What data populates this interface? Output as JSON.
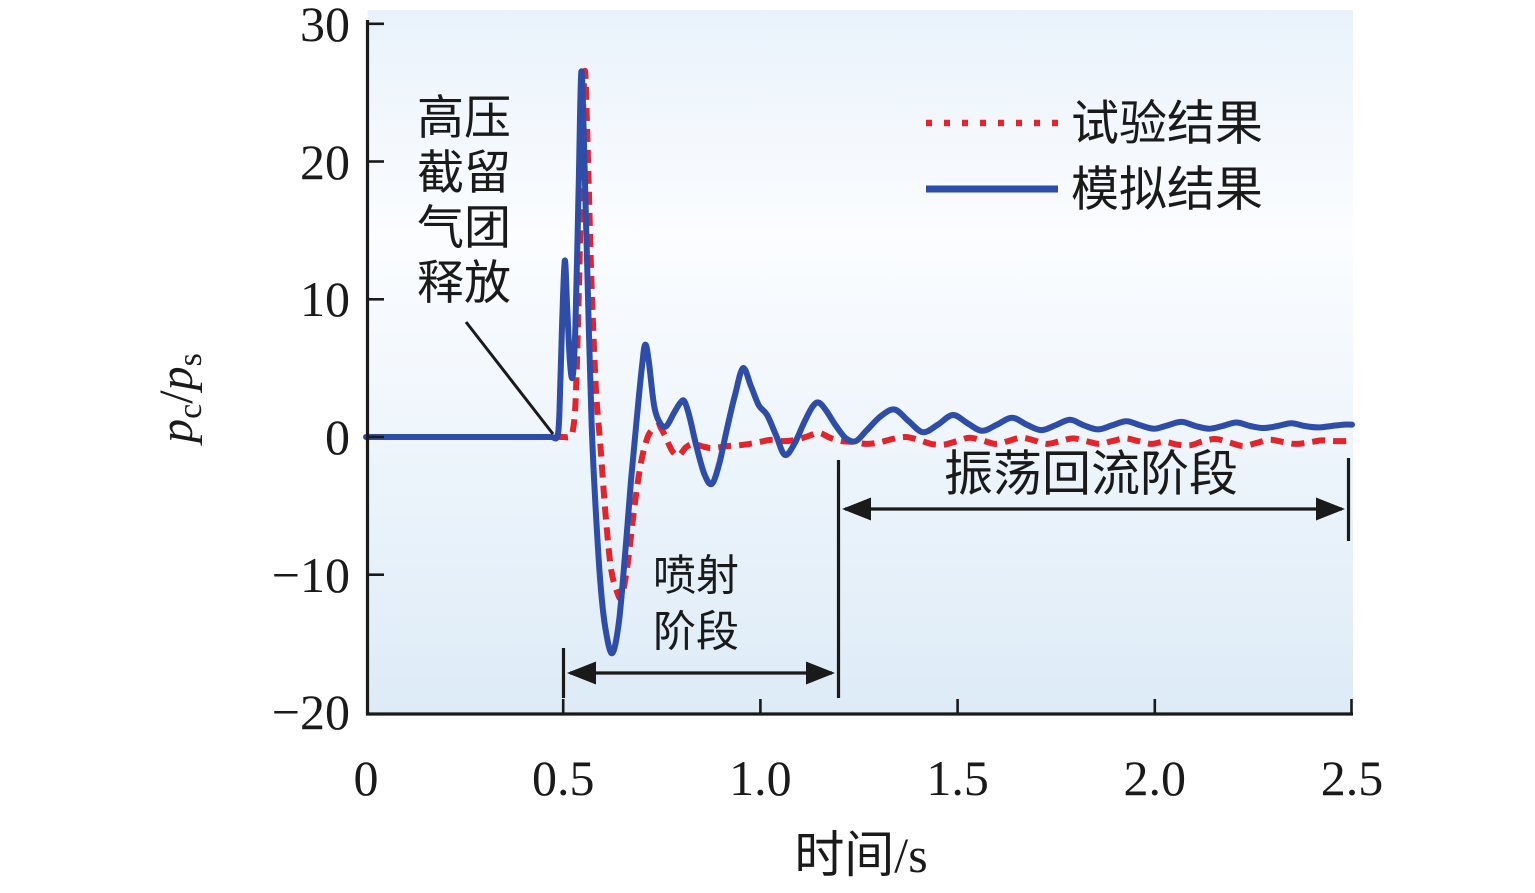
{
  "chart_data": {
    "type": "line",
    "title": "",
    "xlabel": "时间/s",
    "ylabel": "p_c/p_s",
    "xlim": [
      0,
      2.5
    ],
    "ylim": [
      -20,
      30
    ],
    "grid": false,
    "legend_position": "top-right-inside",
    "x_ticks": [
      "0",
      "0.5",
      "1.0",
      "1.5",
      "2.0",
      "2.5"
    ],
    "x_tick_values": [
      0,
      0.5,
      1.0,
      1.5,
      2.0,
      2.5
    ],
    "y_ticks": [
      "30",
      "20",
      "10",
      "0",
      "−10",
      "−20"
    ],
    "y_tick_values": [
      30,
      20,
      10,
      0,
      -10,
      -20
    ],
    "series": [
      {
        "name": "试验结果",
        "style": "dashed",
        "color": "#e4232b",
        "width": 6,
        "dash": "13 8",
        "points": [
          [
            0,
            0
          ],
          [
            0.2,
            0
          ],
          [
            0.35,
            0
          ],
          [
            0.46,
            0
          ],
          [
            0.5,
            0
          ],
          [
            0.515,
            0
          ],
          [
            0.524,
            0.4
          ],
          [
            0.532,
            3
          ],
          [
            0.54,
            11
          ],
          [
            0.548,
            21
          ],
          [
            0.555,
            26.6
          ],
          [
            0.562,
            21
          ],
          [
            0.572,
            11
          ],
          [
            0.583,
            3.5
          ],
          [
            0.594,
            -0.5
          ],
          [
            0.607,
            -5.5
          ],
          [
            0.621,
            -9.5
          ],
          [
            0.636,
            -11.2
          ],
          [
            0.648,
            -11.6
          ],
          [
            0.663,
            -9.3
          ],
          [
            0.68,
            -5.2
          ],
          [
            0.697,
            -1.9
          ],
          [
            0.713,
            -0.1
          ],
          [
            0.728,
            0.6
          ],
          [
            0.743,
            0.8
          ],
          [
            0.758,
            0.1
          ],
          [
            0.776,
            -1.0
          ],
          [
            0.793,
            -1.35
          ],
          [
            0.811,
            -0.75
          ],
          [
            0.83,
            -0.5
          ],
          [
            0.85,
            -0.65
          ],
          [
            0.872,
            -0.8
          ],
          [
            0.895,
            -0.75
          ],
          [
            0.92,
            -0.65
          ],
          [
            0.946,
            -0.6
          ],
          [
            0.972,
            -0.5
          ],
          [
            1.0,
            -0.35
          ],
          [
            1.03,
            -0.2
          ],
          [
            1.06,
            -0.3
          ],
          [
            1.09,
            -0.2
          ],
          [
            1.12,
            0.05
          ],
          [
            1.148,
            0.3
          ],
          [
            1.176,
            -0.05
          ],
          [
            1.206,
            -0.3
          ],
          [
            1.236,
            -0.35
          ],
          [
            1.268,
            -0.5
          ],
          [
            1.3,
            -0.4
          ],
          [
            1.334,
            -0.15
          ],
          [
            1.368,
            0.0
          ],
          [
            1.4,
            -0.2
          ],
          [
            1.433,
            -0.5
          ],
          [
            1.466,
            -0.55
          ],
          [
            1.498,
            -0.3
          ],
          [
            1.53,
            -0.05
          ],
          [
            1.563,
            -0.25
          ],
          [
            1.596,
            -0.5
          ],
          [
            1.628,
            -0.3
          ],
          [
            1.661,
            -0.05
          ],
          [
            1.694,
            -0.25
          ],
          [
            1.727,
            -0.5
          ],
          [
            1.76,
            -0.3
          ],
          [
            1.793,
            -0.1
          ],
          [
            1.826,
            -0.3
          ],
          [
            1.859,
            -0.5
          ],
          [
            1.892,
            -0.3
          ],
          [
            1.925,
            -0.1
          ],
          [
            1.958,
            -0.3
          ],
          [
            1.991,
            -0.5
          ],
          [
            2.024,
            -0.35
          ],
          [
            2.057,
            -0.55
          ],
          [
            2.09,
            -0.6
          ],
          [
            2.123,
            -0.3
          ],
          [
            2.156,
            -0.15
          ],
          [
            2.19,
            -0.4
          ],
          [
            2.223,
            -0.65
          ],
          [
            2.256,
            -0.45
          ],
          [
            2.29,
            -0.2
          ],
          [
            2.323,
            -0.35
          ],
          [
            2.356,
            -0.5
          ],
          [
            2.39,
            -0.4
          ],
          [
            2.423,
            -0.25
          ],
          [
            2.456,
            -0.3
          ],
          [
            2.5,
            -0.3
          ]
        ]
      },
      {
        "name": "模拟结果",
        "style": "solid",
        "color": "#2d4da9",
        "width": 6,
        "dash": "",
        "points": [
          [
            0,
            0
          ],
          [
            0.2,
            0
          ],
          [
            0.35,
            0
          ],
          [
            0.44,
            0
          ],
          [
            0.47,
            0
          ],
          [
            0.484,
            0
          ],
          [
            0.49,
            1.5
          ],
          [
            0.497,
            8
          ],
          [
            0.504,
            12.8
          ],
          [
            0.51,
            9.5
          ],
          [
            0.517,
            5.5
          ],
          [
            0.524,
            4.4
          ],
          [
            0.531,
            8
          ],
          [
            0.539,
            18
          ],
          [
            0.546,
            26.5
          ],
          [
            0.553,
            21
          ],
          [
            0.562,
            11
          ],
          [
            0.572,
            1
          ],
          [
            0.582,
            -5
          ],
          [
            0.594,
            -10.5
          ],
          [
            0.607,
            -13.9
          ],
          [
            0.624,
            -15.7
          ],
          [
            0.641,
            -13.5
          ],
          [
            0.657,
            -8.5
          ],
          [
            0.671,
            -3.5
          ],
          [
            0.686,
            1.2
          ],
          [
            0.7,
            5.2
          ],
          [
            0.708,
            6.7
          ],
          [
            0.717,
            5.5
          ],
          [
            0.731,
            2.2
          ],
          [
            0.747,
            0.95
          ],
          [
            0.762,
            0.8
          ],
          [
            0.78,
            1.7
          ],
          [
            0.796,
            2.45
          ],
          [
            0.807,
            2.6
          ],
          [
            0.82,
            1.5
          ],
          [
            0.838,
            -0.7
          ],
          [
            0.858,
            -2.7
          ],
          [
            0.877,
            -3.4
          ],
          [
            0.896,
            -1.9
          ],
          [
            0.916,
            0.7
          ],
          [
            0.936,
            3.1
          ],
          [
            0.956,
            5.0
          ],
          [
            0.976,
            3.7
          ],
          [
            0.996,
            2.3
          ],
          [
            1.017,
            1.6
          ],
          [
            1.04,
            0.1
          ],
          [
            1.062,
            -1.3
          ],
          [
            1.086,
            -0.5
          ],
          [
            1.11,
            1.0
          ],
          [
            1.132,
            2.2
          ],
          [
            1.148,
            2.5
          ],
          [
            1.167,
            1.9
          ],
          [
            1.192,
            0.8
          ],
          [
            1.217,
            -0.1
          ],
          [
            1.242,
            -0.3
          ],
          [
            1.27,
            0.5
          ],
          [
            1.305,
            1.5
          ],
          [
            1.34,
            2.0
          ],
          [
            1.376,
            1.15
          ],
          [
            1.412,
            0.35
          ],
          [
            1.45,
            0.9
          ],
          [
            1.488,
            1.6
          ],
          [
            1.525,
            1.0
          ],
          [
            1.562,
            0.45
          ],
          [
            1.6,
            0.9
          ],
          [
            1.638,
            1.4
          ],
          [
            1.675,
            0.9
          ],
          [
            1.712,
            0.5
          ],
          [
            1.748,
            0.85
          ],
          [
            1.785,
            1.25
          ],
          [
            1.82,
            0.85
          ],
          [
            1.856,
            0.55
          ],
          [
            1.892,
            0.85
          ],
          [
            1.928,
            1.15
          ],
          [
            1.963,
            0.85
          ],
          [
            1.998,
            0.6
          ],
          [
            2.033,
            0.85
          ],
          [
            2.068,
            1.1
          ],
          [
            2.103,
            0.8
          ],
          [
            2.138,
            0.6
          ],
          [
            2.172,
            0.8
          ],
          [
            2.207,
            1.05
          ],
          [
            2.242,
            0.8
          ],
          [
            2.276,
            0.65
          ],
          [
            2.311,
            0.8
          ],
          [
            2.346,
            1.0
          ],
          [
            2.38,
            0.8
          ],
          [
            2.414,
            0.7
          ],
          [
            2.448,
            0.8
          ],
          [
            2.48,
            0.9
          ],
          [
            2.5,
            0.9
          ]
        ]
      }
    ],
    "annotations": [
      {
        "text": "高压截留气团释放",
        "target": "curve rise at t=0.5"
      },
      {
        "text": "喷射阶段",
        "span_t": [
          0.5,
          1.2
        ]
      },
      {
        "text": "振荡回流阶段",
        "span_t": [
          1.2,
          2.5
        ]
      }
    ]
  },
  "axis": {
    "xlabel": "时间/s",
    "ylabel_parts": {
      "p1": "p",
      "sub_c": "c",
      "slash": "/",
      "p2": "p",
      "sub_s": "s"
    }
  },
  "legend": {
    "experiment_label": "试验结果",
    "simulation_label": "模拟结果"
  },
  "annotations": {
    "release": {
      "line1": "高压",
      "line2": "截留",
      "line3": "气团",
      "line4": "释放"
    },
    "jet_phase": {
      "line1": "喷射",
      "line2": "阶段"
    },
    "oscillation_phase": {
      "label": "振荡回流阶段"
    }
  },
  "colors": {
    "experiment_red": "#e4232b",
    "simulation_blue": "#2d4da9",
    "axis_black": "#1a1a1a",
    "bg_top": "#e9f2fb",
    "bg_mid": "#fbfdff",
    "bg_bottom": "#ddebf7"
  }
}
